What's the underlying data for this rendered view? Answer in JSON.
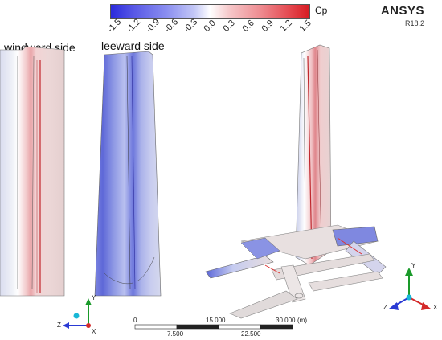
{
  "legend": {
    "variable": "Cp",
    "ticks": [
      "-1.5",
      "-1.2",
      "-0.9",
      "-0.6",
      "-0.3",
      "0.0",
      "0.3",
      "0.6",
      "0.9",
      "1.2",
      "1.5"
    ],
    "colors": {
      "min": "#2b2bdc",
      "mid": "#ffffff",
      "max": "#d71b22"
    }
  },
  "brand": {
    "name": "ANSYS",
    "version": "R18.2"
  },
  "views": {
    "windward_label": "windward side",
    "leeward_label": "leeward side"
  },
  "scale": {
    "top_ticks": [
      "0",
      "15.000",
      "30.000"
    ],
    "unit": "(m)",
    "bottom_ticks": [
      "7.500",
      "22.500"
    ]
  },
  "triad": {
    "x": "X",
    "y": "Y",
    "z": "Z"
  },
  "triad_left": {
    "y": "Y",
    "z": "Z",
    "x": "X"
  }
}
